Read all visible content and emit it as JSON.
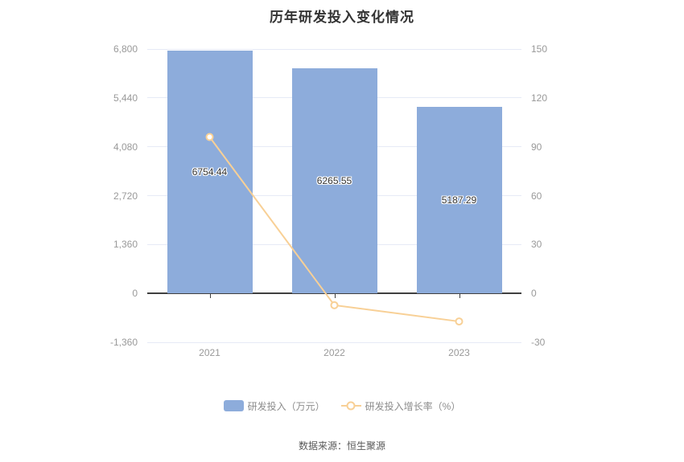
{
  "title": "历年研发投入变化情况",
  "source": "数据来源：恒生聚源",
  "legend": {
    "items": [
      {
        "label": "研发投入（万元）",
        "type": "bar"
      },
      {
        "label": "研发投入增长率（%）",
        "type": "line"
      }
    ]
  },
  "colors": {
    "background": "#FFFFFF",
    "bar": "#8DACDB",
    "line": "#F8D096",
    "grid": "#E6EAF6",
    "zero_axis": "#404040",
    "axis_label": "#999999",
    "value_label": "#333333",
    "title": "#333333",
    "legend_text": "#8C8C8C",
    "source_text": "#595959"
  },
  "chart_data": {
    "type": "combo",
    "categories": [
      "2021",
      "2022",
      "2023"
    ],
    "series": [
      {
        "name": "研发投入（万元）",
        "type": "bar",
        "axis": "left",
        "values": [
          6754.44,
          6265.55,
          5187.29
        ],
        "labels": [
          "6754.44",
          "6265.55",
          "5187.29"
        ]
      },
      {
        "name": "研发投入增长率（%）",
        "type": "line",
        "axis": "right",
        "values": [
          96.0,
          -7.24,
          -17.21
        ]
      }
    ],
    "left_axis": {
      "min": -1360,
      "max": 6800,
      "tick_values": [
        6800,
        5440,
        4080,
        2720,
        1360,
        0,
        -1360
      ],
      "ticks": [
        "6,800",
        "5,440",
        "4,080",
        "2,720",
        "1,360",
        "0",
        "-1,360"
      ]
    },
    "right_axis": {
      "min": -30,
      "max": 150,
      "tick_values": [
        150,
        120,
        90,
        60,
        30,
        0,
        -30
      ],
      "ticks": [
        "150",
        "120",
        "90",
        "60",
        "30",
        "0",
        "-30"
      ]
    },
    "grid": true,
    "legend_position": "bottom"
  }
}
